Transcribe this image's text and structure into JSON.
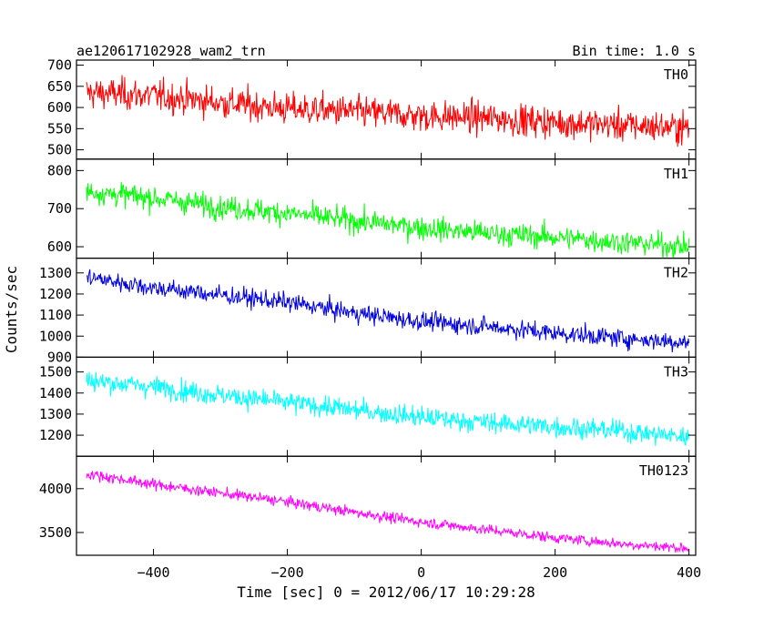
{
  "header": {
    "title": "ae120617102928_wam2_trn",
    "bin_time": "Bin time: 1.0 s"
  },
  "chart_data": {
    "type": "line",
    "xlabel": "Time [sec] 0 = 2012/06/17 10:29:28",
    "ylabel": "Counts/sec",
    "xlim": [
      -515,
      410
    ],
    "x_ticks": [
      -400,
      -200,
      0,
      200,
      400
    ],
    "x_tick_labels": [
      "−400",
      "−200",
      "0",
      "200",
      "400"
    ],
    "x_range": [
      -500,
      400
    ],
    "bin_seconds": 1,
    "grid": false,
    "panels": [
      {
        "name": "TH0",
        "color": "#ff0000",
        "ylim": [
          478,
          712
        ],
        "yticks": [
          500,
          550,
          600,
          650,
          700
        ],
        "trend": [
          [
            -500,
            635
          ],
          [
            -400,
            628
          ],
          [
            -300,
            612
          ],
          [
            -200,
            597
          ],
          [
            -100,
            590
          ],
          [
            0,
            580
          ],
          [
            100,
            575
          ],
          [
            200,
            565
          ],
          [
            300,
            558
          ],
          [
            400,
            552
          ]
        ],
        "noise_sd": 34
      },
      {
        "name": "TH1",
        "color": "#00ff00",
        "ylim": [
          570,
          830
        ],
        "yticks": [
          600,
          700,
          800
        ],
        "trend": [
          [
            -500,
            745
          ],
          [
            -400,
            728
          ],
          [
            -300,
            705
          ],
          [
            -200,
            688
          ],
          [
            -100,
            668
          ],
          [
            0,
            650
          ],
          [
            100,
            635
          ],
          [
            200,
            625
          ],
          [
            300,
            612
          ],
          [
            400,
            600
          ]
        ],
        "noise_sd": 28
      },
      {
        "name": "TH2",
        "color": "#0000e0",
        "ylim": [
          900,
          1370
        ],
        "yticks": [
          900,
          1000,
          1100,
          1200,
          1300
        ],
        "trend": [
          [
            -500,
            1280
          ],
          [
            -400,
            1230
          ],
          [
            -300,
            1195
          ],
          [
            -200,
            1160
          ],
          [
            -100,
            1110
          ],
          [
            0,
            1070
          ],
          [
            100,
            1045
          ],
          [
            200,
            1015
          ],
          [
            300,
            990
          ],
          [
            400,
            970
          ]
        ],
        "noise_sd": 40
      },
      {
        "name": "TH3",
        "color": "#00ffff",
        "ylim": [
          1100,
          1570
        ],
        "yticks": [
          1200,
          1300,
          1400,
          1500
        ],
        "trend": [
          [
            -500,
            1460
          ],
          [
            -400,
            1430
          ],
          [
            -300,
            1390
          ],
          [
            -200,
            1355
          ],
          [
            -100,
            1320
          ],
          [
            0,
            1285
          ],
          [
            100,
            1260
          ],
          [
            200,
            1240
          ],
          [
            300,
            1220
          ],
          [
            400,
            1190
          ]
        ],
        "noise_sd": 45
      },
      {
        "name": "TH0123",
        "color": "#ff00ff",
        "ylim": [
          3240,
          4370
        ],
        "yticks": [
          3500,
          4000
        ],
        "trend": [
          [
            -500,
            4170
          ],
          [
            -400,
            4050
          ],
          [
            -300,
            3950
          ],
          [
            -200,
            3850
          ],
          [
            -100,
            3730
          ],
          [
            0,
            3620
          ],
          [
            100,
            3530
          ],
          [
            200,
            3440
          ],
          [
            300,
            3370
          ],
          [
            400,
            3320
          ]
        ],
        "noise_sd": 55
      }
    ]
  }
}
